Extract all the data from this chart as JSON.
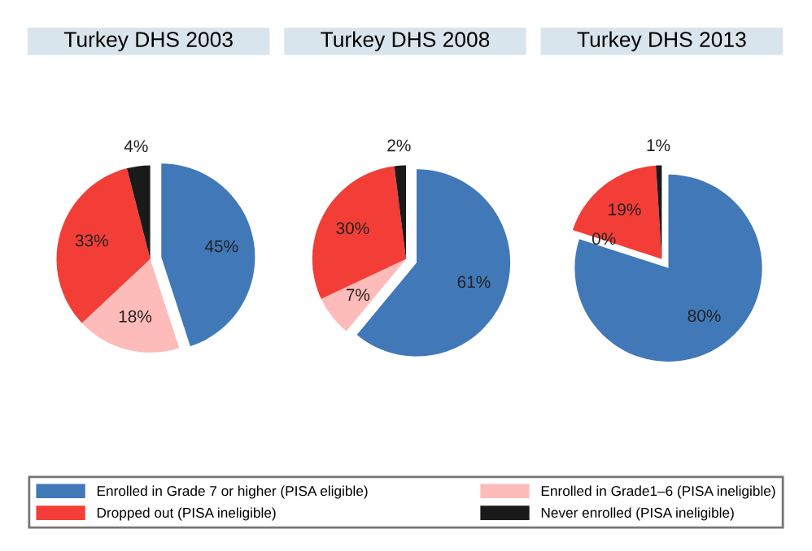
{
  "chart_data": [
    {
      "type": "pie",
      "title": "Turkey DHS 2003",
      "categories": [
        "Enrolled in Grade 7 or higher (PISA eligible)",
        "Enrolled in Grade1–6 (PISA ineligible)",
        "Dropped out (PISA ineligible)",
        "Never enrolled (PISA ineligible)"
      ],
      "values": [
        45,
        18,
        33,
        4
      ],
      "value_labels": [
        "45%",
        "18%",
        "33%",
        "4%"
      ],
      "colors": [
        "#4178b8",
        "#fdbcb9",
        "#f23e37",
        "#1a1a1a"
      ],
      "legend": "bottom"
    },
    {
      "type": "pie",
      "title": "Turkey DHS 2008",
      "categories": [
        null,
        null,
        null,
        null
      ],
      "values": [
        61,
        7,
        30,
        2
      ],
      "value_labels": [
        "61%",
        "7%",
        "30%",
        "2%"
      ],
      "colors": [
        "#4178b8",
        "#fdbcb9",
        "#f23e37",
        "#1a1a1a"
      ]
    },
    {
      "type": "pie",
      "title": "Turkey DHS 2013",
      "categories": [
        null,
        null,
        null,
        null
      ],
      "values": [
        80,
        0,
        19,
        1
      ],
      "value_labels": [
        "80%",
        "0%",
        "19%",
        "1%"
      ],
      "colors": [
        "#4178b8",
        "#fdbcb9",
        "#f23e37",
        "#1a1a1a"
      ]
    }
  ]
}
